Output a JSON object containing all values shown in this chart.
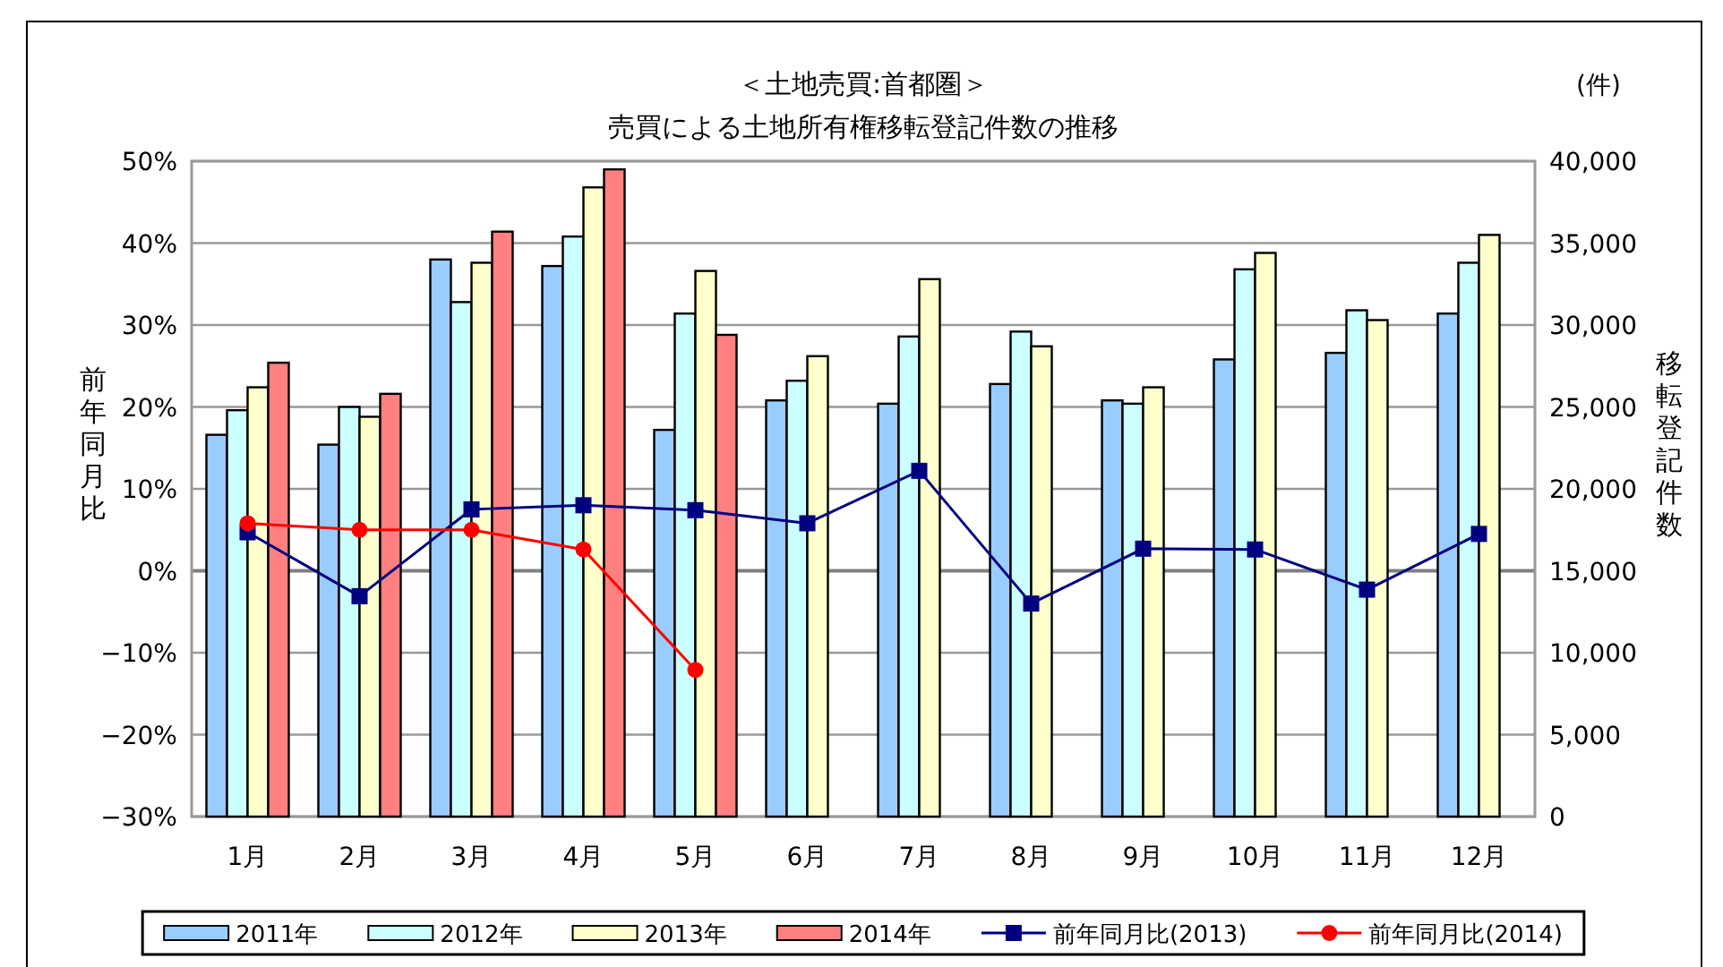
{
  "chart_data": {
    "type": "bar",
    "title": "＜土地売買:首都圏＞",
    "subtitle": "売買による土地所有権移転登記件数の推移",
    "ylabel": "前年同月比",
    "y2label": "移転登記件数",
    "annotations": [
      "(件)"
    ],
    "categories": [
      "1月",
      "2月",
      "3月",
      "4月",
      "5月",
      "6月",
      "7月",
      "8月",
      "9月",
      "10月",
      "11月",
      "12月"
    ],
    "series": [
      {
        "name": "2011年",
        "axis": "y2",
        "color": "#99ccff",
        "values": [
          23300,
          22700,
          34000,
          33600,
          23600,
          25400,
          25200,
          26400,
          25400,
          27900,
          28300,
          30700
        ]
      },
      {
        "name": "2012年",
        "axis": "y2",
        "color": "#ccffff",
        "values": [
          24800,
          25000,
          31400,
          35400,
          30700,
          26600,
          29300,
          29600,
          25200,
          33400,
          30900,
          33800
        ]
      },
      {
        "name": "2013年",
        "axis": "y2",
        "color": "#ffffcc",
        "values": [
          26200,
          24400,
          33800,
          38400,
          33300,
          28100,
          32800,
          28700,
          26200,
          34400,
          30300,
          35500
        ]
      },
      {
        "name": "2014年",
        "axis": "y2",
        "color": "#ff8080",
        "values": [
          27700,
          25800,
          35700,
          39500,
          29400,
          null,
          null,
          null,
          null,
          null,
          null,
          null
        ]
      },
      {
        "name": "前年同月比(2013)",
        "type": "line",
        "axis": "y",
        "marker": "square",
        "color": "#000080",
        "values": [
          4.7,
          -3.1,
          7.5,
          8.0,
          7.4,
          5.8,
          12.2,
          -4.0,
          2.7,
          2.6,
          -2.3,
          4.5
        ]
      },
      {
        "name": "前年同月比(2014)",
        "type": "line",
        "axis": "y",
        "marker": "circle",
        "color": "#ff0000",
        "values": [
          5.8,
          5.0,
          5.0,
          2.6,
          -12.1,
          null,
          null,
          null,
          null,
          null,
          null,
          null
        ]
      }
    ],
    "ylim": [
      -30,
      50
    ],
    "yticks": [
      {
        "value": -30,
        "label": "−30%"
      },
      {
        "value": -20,
        "label": "−20%"
      },
      {
        "value": -10,
        "label": "−10%"
      },
      {
        "value": 0,
        "label": "0%"
      },
      {
        "value": 10,
        "label": "10%"
      },
      {
        "value": 20,
        "label": "20%"
      },
      {
        "value": 30,
        "label": "30%"
      },
      {
        "value": 40,
        "label": "40%"
      },
      {
        "value": 50,
        "label": "50%"
      }
    ],
    "y2lim": [
      0,
      40000
    ],
    "y2ticks": [
      0,
      {
        "value": 5000,
        "label": "5,000"
      },
      {
        "value": 10000,
        "label": "10,000"
      },
      {
        "value": 15000,
        "label": "15,000"
      },
      {
        "value": 20000,
        "label": "20,000"
      },
      {
        "value": 25000,
        "label": "25,000"
      },
      {
        "value": 30000,
        "label": "30,000"
      },
      {
        "value": 35000,
        "label": "35,000"
      },
      {
        "value": 40000,
        "label": "40,000"
      }
    ],
    "grid": "y",
    "legend": "bottom"
  }
}
